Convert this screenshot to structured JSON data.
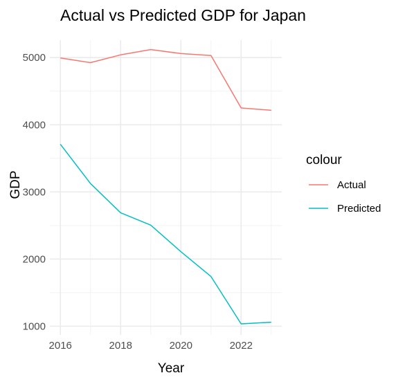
{
  "chart_data": {
    "type": "line",
    "title": "Actual vs Predicted GDP for Japan",
    "xlabel": "Year",
    "ylabel": "GDP",
    "x": [
      2016,
      2017,
      2018,
      2019,
      2020,
      2021,
      2022,
      2023
    ],
    "xticks": [
      2016,
      2018,
      2020,
      2022
    ],
    "yticks": [
      1000,
      2000,
      3000,
      4000,
      5000
    ],
    "xlim": [
      2015.65,
      2023.35
    ],
    "ylim": [
      870,
      5260
    ],
    "grid": true,
    "legend": {
      "title": "colour",
      "position": "right"
    },
    "series": [
      {
        "name": "Actual",
        "color": "#F8766D",
        "values": [
          4995,
          4925,
          5040,
          5120,
          5060,
          5030,
          4250,
          4215
        ]
      },
      {
        "name": "Predicted",
        "color": "#00BFC4",
        "values": [
          3710,
          3125,
          2690,
          2505,
          2110,
          1740,
          1035,
          1060
        ]
      }
    ]
  }
}
